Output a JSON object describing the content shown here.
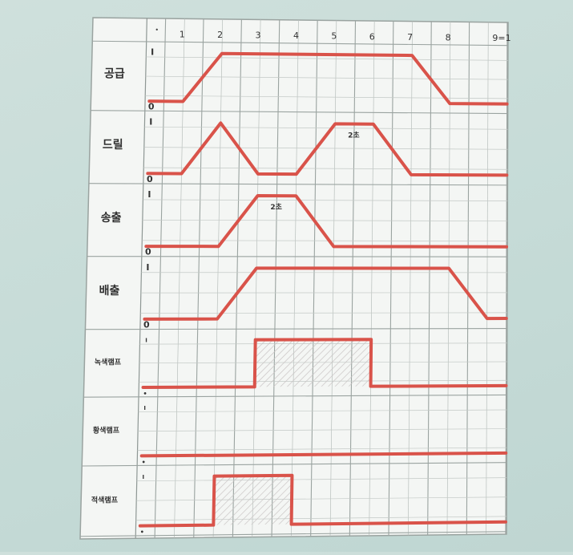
{
  "timing_chart": {
    "steps": [
      "1",
      "2",
      "3",
      "4",
      "5",
      "6",
      "7",
      "8",
      "9=1"
    ],
    "header_mark": "•",
    "signal_color": "#d9534a",
    "rows": [
      {
        "label": "공급",
        "low_mark": "0",
        "high_mark": "I",
        "wave": [
          [
            0,
            0
          ],
          [
            0.5,
            0
          ],
          [
            1.5,
            1
          ],
          [
            6.5,
            1
          ],
          [
            7.5,
            0
          ],
          [
            9,
            0
          ]
        ]
      },
      {
        "label": "드릴",
        "low_mark": "0",
        "high_mark": "I",
        "annotation": "2초",
        "wave": [
          [
            0,
            0
          ],
          [
            0.5,
            0
          ],
          [
            1.5,
            1
          ],
          [
            2.5,
            0
          ],
          [
            3.5,
            0
          ],
          [
            4.5,
            1
          ],
          [
            5.5,
            1
          ],
          [
            6.5,
            0
          ],
          [
            9,
            0
          ]
        ]
      },
      {
        "label": "송출",
        "low_mark": "0",
        "high_mark": "I",
        "annotation": "2초",
        "wave": [
          [
            0,
            0
          ],
          [
            1.5,
            0
          ],
          [
            2.5,
            1
          ],
          [
            3.5,
            1
          ],
          [
            4.5,
            0
          ],
          [
            9,
            0
          ]
        ]
      },
      {
        "label": "배출",
        "low_mark": "0",
        "high_mark": "I",
        "wave": [
          [
            0,
            0
          ],
          [
            1.5,
            0
          ],
          [
            2.5,
            1
          ],
          [
            7.5,
            1
          ],
          [
            8.5,
            0
          ],
          [
            9,
            0
          ]
        ]
      },
      {
        "label": "녹색램프",
        "low_mark": "•",
        "high_mark": "I",
        "wave": [
          [
            0,
            0
          ],
          [
            2.5,
            0
          ],
          [
            2.5,
            1
          ],
          [
            5.5,
            1
          ],
          [
            5.5,
            0
          ],
          [
            9,
            0
          ]
        ],
        "shade": [
          2.5,
          5.5
        ]
      },
      {
        "label": "황색램프",
        "low_mark": "•",
        "high_mark": "I",
        "wave": [
          [
            0,
            0
          ],
          [
            9,
            0
          ]
        ]
      },
      {
        "label": "적색램프",
        "low_mark": "•",
        "high_mark": "I",
        "wave": [
          [
            0,
            0
          ],
          [
            1.5,
            0
          ],
          [
            1.5,
            1
          ],
          [
            3.5,
            1
          ],
          [
            3.5,
            0
          ],
          [
            9,
            0
          ]
        ],
        "shade": [
          1.5,
          3.5
        ]
      }
    ]
  }
}
